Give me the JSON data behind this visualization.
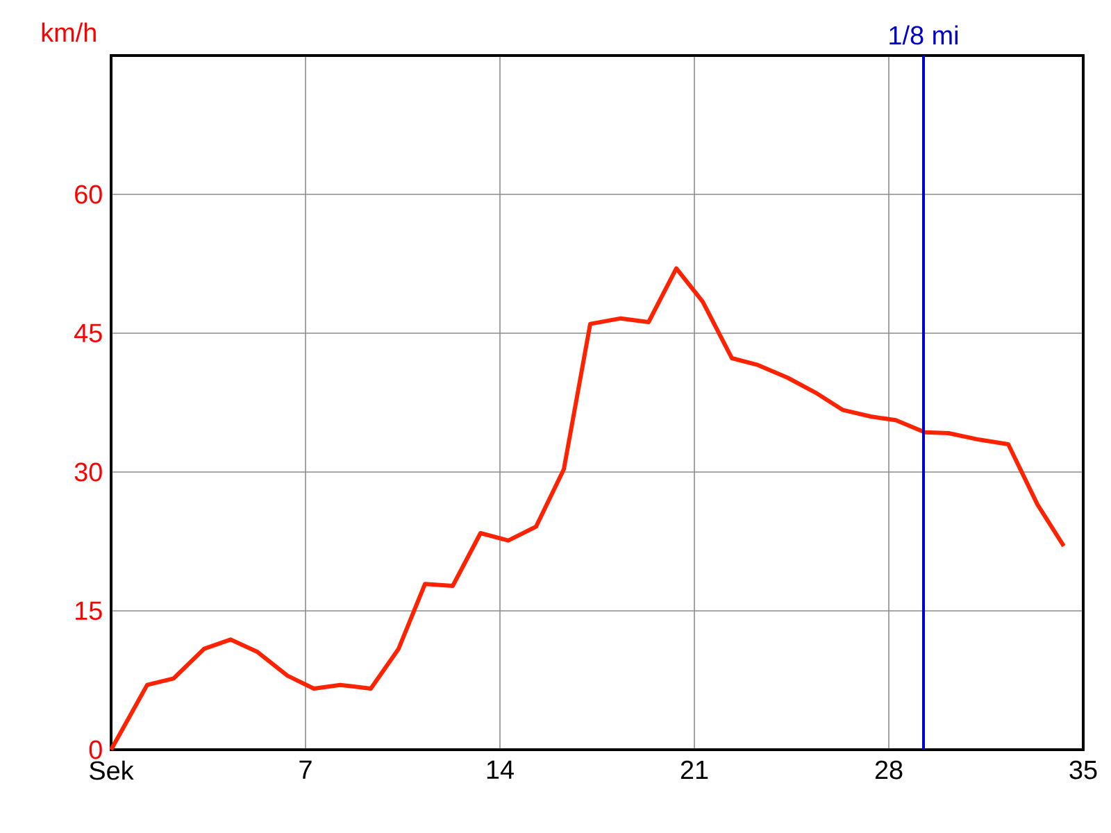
{
  "chart_data": {
    "type": "line",
    "ylabel": "km/h",
    "x": [
      0,
      1.3,
      2.25,
      3.35,
      4.3,
      5.25,
      6.35,
      7.3,
      8.25,
      9.35,
      10.35,
      11.3,
      12.3,
      13.3,
      14.3,
      15.3,
      16.3,
      17.25,
      18.35,
      19.35,
      20.35,
      21.3,
      22.35,
      23.25,
      24.35,
      25.35,
      26.35,
      27.35,
      28.25,
      29.3,
      30.15,
      31.25,
      32.3,
      33.35,
      34.3
    ],
    "series": [
      {
        "color": "#ff2200",
        "values": [
          0,
          7.0,
          7.7,
          10.9,
          11.9,
          10.6,
          8.0,
          6.6,
          7.0,
          6.6,
          10.9,
          17.9,
          17.7,
          23.4,
          22.6,
          24.1,
          30.3,
          46.0,
          46.6,
          46.2,
          52.0,
          48.4,
          42.3,
          41.6,
          40.2,
          38.6,
          36.7,
          36.0,
          35.6,
          34.3,
          34.2,
          33.5,
          33.0,
          26.5,
          22.0
        ]
      }
    ],
    "xlim": [
      0,
      35
    ],
    "ylim": [
      0,
      75
    ],
    "xticks": [
      {
        "value": 0,
        "label": "Sek"
      },
      7,
      14,
      21,
      28,
      35
    ],
    "yticks": [
      0,
      15,
      30,
      45,
      60
    ],
    "grid": true,
    "marker": "none",
    "line_style": "solid",
    "ref_lines": [
      {
        "axis": "x",
        "value": 29.25,
        "label": "1/8 mi",
        "color": "#0000cc"
      }
    ]
  }
}
